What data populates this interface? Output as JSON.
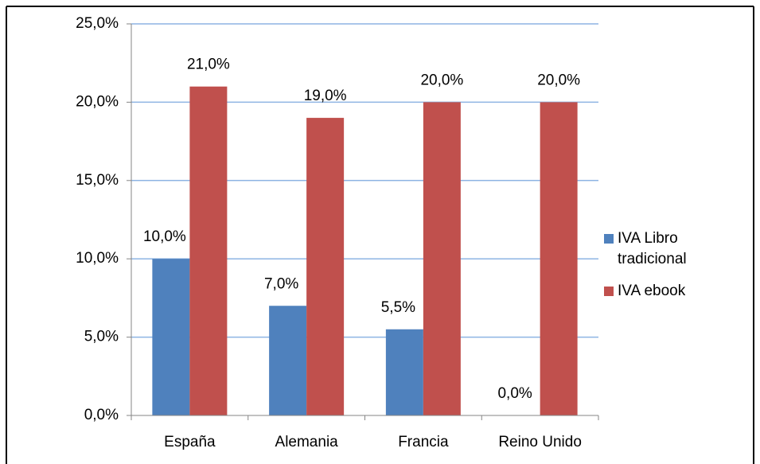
{
  "chart_data": {
    "type": "bar",
    "categories": [
      "España",
      "Alemania",
      "Francia",
      "Reino Unido"
    ],
    "series": [
      {
        "name": "IVA Libro tradicional",
        "color": "#4f81bd",
        "values": [
          10,
          7,
          5.5,
          0
        ],
        "value_labels": [
          "10,0%",
          "7,0%",
          "5,5%",
          "0,0%"
        ]
      },
      {
        "name": "IVA ebook",
        "color": "#c0504d",
        "values": [
          21,
          19,
          20,
          20
        ],
        "value_labels": [
          "21,0%",
          "19,0%",
          "20,0%",
          "20,0%"
        ]
      }
    ],
    "ylim": [
      0,
      25
    ],
    "yticks": [
      {
        "value": 0,
        "label": "0,0%"
      },
      {
        "value": 5,
        "label": "5,0%"
      },
      {
        "value": 10,
        "label": "10,0%"
      },
      {
        "value": 15,
        "label": "15,0%"
      },
      {
        "value": 20,
        "label": "20,0%"
      },
      {
        "value": 25,
        "label": "25,0%"
      }
    ],
    "grid": true,
    "legend": "right"
  }
}
